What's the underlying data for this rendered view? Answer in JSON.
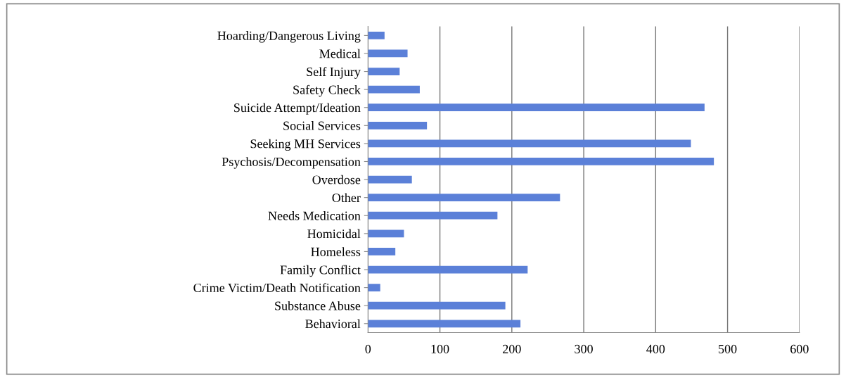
{
  "chart_data": {
    "type": "bar",
    "orientation": "horizontal",
    "categories": [
      "Hoarding/Dangerous Living",
      "Medical",
      "Self Injury",
      "Safety Check",
      "Suicide Attempt/Ideation",
      "Social Services",
      "Seeking MH Services",
      "Psychosis/Decompensation",
      "Overdose",
      "Other",
      "Needs Medication",
      "Homicidal",
      "Homeless",
      "Family Conflict",
      "Crime Victim/Death Notification",
      "Substance Abuse",
      "Behavioral"
    ],
    "values": [
      23,
      55,
      44,
      72,
      468,
      82,
      449,
      481,
      61,
      267,
      180,
      50,
      38,
      222,
      17,
      191,
      212
    ],
    "color": "#5b80d8",
    "xlim": [
      0,
      600
    ],
    "xticks": [
      0,
      100,
      200,
      300,
      400,
      500,
      600
    ],
    "grid": "x"
  }
}
